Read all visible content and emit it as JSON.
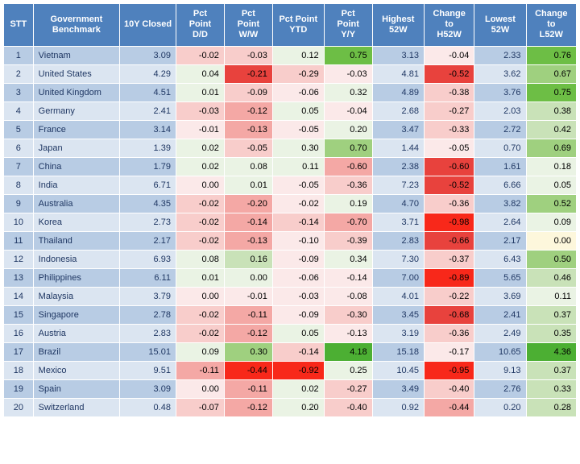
{
  "table": {
    "header_bg": "#4f81bd",
    "header_color": "#ffffff",
    "columns": [
      {
        "key": "stt",
        "label": "STT",
        "class": "col-stt"
      },
      {
        "key": "name",
        "label": "Government Benchmark",
        "class": "col-name"
      },
      {
        "key": "close",
        "label": "10Y Closed",
        "class": "col-close"
      },
      {
        "key": "dd",
        "label": "Pct Point D/D",
        "class": "col-dd"
      },
      {
        "key": "ww",
        "label": "Pct Point W/W",
        "class": "col-ww"
      },
      {
        "key": "ytd",
        "label": "Pct Point YTD",
        "class": "col-ytd"
      },
      {
        "key": "yy",
        "label": "Pct Point Y/Y",
        "class": "col-yy"
      },
      {
        "key": "h52",
        "label": "Highest 52W",
        "class": "col-h52"
      },
      {
        "key": "ch52",
        "label": "Change to H52W",
        "class": "col-ch52"
      },
      {
        "key": "l52",
        "label": "Lowest 52W",
        "class": "col-l52"
      },
      {
        "key": "cl52",
        "label": "Change to L52W",
        "class": "col-cl52"
      }
    ],
    "palette": {
      "blue_odd": "#b8cce4",
      "blue_even": "#dbe5f1",
      "pink_faint": "#fbe9e9",
      "pink_light": "#f8cdcb",
      "pink_med": "#f4a8a5",
      "red_strong": "#e8423d",
      "red_full": "#f8281a",
      "green_faint": "#eaf3e4",
      "green_light": "#c9e2b8",
      "green_med": "#9fd07f",
      "green_strong": "#6dbe45",
      "green_full": "#4caf33",
      "yellow_faint": "#fdf7dc",
      "text_dark": "#1f3763",
      "text_black": "#000000"
    },
    "rows": [
      {
        "stt": 1,
        "name": "Vietnam",
        "close": "3.09",
        "dd": {
          "v": "-0.02",
          "c": "#f8cdcb"
        },
        "ww": {
          "v": "-0.03",
          "c": "#f8cdcb"
        },
        "ytd": {
          "v": "0.12",
          "c": "#eaf3e4"
        },
        "yy": {
          "v": "0.75",
          "c": "#6dbe45"
        },
        "h52": "3.13",
        "ch52": {
          "v": "-0.04",
          "c": "#fbe9e9"
        },
        "l52": "2.33",
        "cl52": {
          "v": "0.76",
          "c": "#6dbe45"
        }
      },
      {
        "stt": 2,
        "name": "United States",
        "close": "4.29",
        "dd": {
          "v": "0.04",
          "c": "#eaf3e4"
        },
        "ww": {
          "v": "-0.21",
          "c": "#e8423d"
        },
        "ytd": {
          "v": "-0.29",
          "c": "#f8cdcb"
        },
        "yy": {
          "v": "-0.03",
          "c": "#fbe9e9"
        },
        "h52": "4.81",
        "ch52": {
          "v": "-0.52",
          "c": "#e8423d"
        },
        "l52": "3.62",
        "cl52": {
          "v": "0.67",
          "c": "#9fd07f"
        }
      },
      {
        "stt": 3,
        "name": "United Kingdom",
        "close": "4.51",
        "dd": {
          "v": "0.01",
          "c": "#eaf3e4"
        },
        "ww": {
          "v": "-0.09",
          "c": "#f8cdcb"
        },
        "ytd": {
          "v": "-0.06",
          "c": "#fbe9e9"
        },
        "yy": {
          "v": "0.32",
          "c": "#eaf3e4"
        },
        "h52": "4.89",
        "ch52": {
          "v": "-0.38",
          "c": "#f8cdcb"
        },
        "l52": "3.76",
        "cl52": {
          "v": "0.75",
          "c": "#6dbe45"
        }
      },
      {
        "stt": 4,
        "name": "Germany",
        "close": "2.41",
        "dd": {
          "v": "-0.03",
          "c": "#f8cdcb"
        },
        "ww": {
          "v": "-0.12",
          "c": "#f4a8a5"
        },
        "ytd": {
          "v": "0.05",
          "c": "#eaf3e4"
        },
        "yy": {
          "v": "-0.04",
          "c": "#fbe9e9"
        },
        "h52": "2.68",
        "ch52": {
          "v": "-0.27",
          "c": "#f8cdcb"
        },
        "l52": "2.03",
        "cl52": {
          "v": "0.38",
          "c": "#c9e2b8"
        }
      },
      {
        "stt": 5,
        "name": "France",
        "close": "3.14",
        "dd": {
          "v": "-0.01",
          "c": "#fbe9e9"
        },
        "ww": {
          "v": "-0.13",
          "c": "#f4a8a5"
        },
        "ytd": {
          "v": "-0.05",
          "c": "#fbe9e9"
        },
        "yy": {
          "v": "0.20",
          "c": "#eaf3e4"
        },
        "h52": "3.47",
        "ch52": {
          "v": "-0.33",
          "c": "#f8cdcb"
        },
        "l52": "2.72",
        "cl52": {
          "v": "0.42",
          "c": "#c9e2b8"
        }
      },
      {
        "stt": 6,
        "name": "Japan",
        "close": "1.39",
        "dd": {
          "v": "0.02",
          "c": "#eaf3e4"
        },
        "ww": {
          "v": "-0.05",
          "c": "#f8cdcb"
        },
        "ytd": {
          "v": "0.30",
          "c": "#eaf3e4"
        },
        "yy": {
          "v": "0.70",
          "c": "#9fd07f"
        },
        "h52": "1.44",
        "ch52": {
          "v": "-0.05",
          "c": "#fbe9e9"
        },
        "l52": "0.70",
        "cl52": {
          "v": "0.69",
          "c": "#9fd07f"
        }
      },
      {
        "stt": 7,
        "name": "China",
        "close": "1.79",
        "dd": {
          "v": "0.02",
          "c": "#eaf3e4"
        },
        "ww": {
          "v": "0.08",
          "c": "#eaf3e4"
        },
        "ytd": {
          "v": "0.11",
          "c": "#eaf3e4"
        },
        "yy": {
          "v": "-0.60",
          "c": "#f4a8a5"
        },
        "h52": "2.38",
        "ch52": {
          "v": "-0.60",
          "c": "#e8423d"
        },
        "l52": "1.61",
        "cl52": {
          "v": "0.18",
          "c": "#eaf3e4"
        }
      },
      {
        "stt": 8,
        "name": "India",
        "close": "6.71",
        "dd": {
          "v": "0.00",
          "c": "#fbe9e9"
        },
        "ww": {
          "v": "0.01",
          "c": "#eaf3e4"
        },
        "ytd": {
          "v": "-0.05",
          "c": "#fbe9e9"
        },
        "yy": {
          "v": "-0.36",
          "c": "#f8cdcb"
        },
        "h52": "7.23",
        "ch52": {
          "v": "-0.52",
          "c": "#e8423d"
        },
        "l52": "6.66",
        "cl52": {
          "v": "0.05",
          "c": "#eaf3e4"
        }
      },
      {
        "stt": 9,
        "name": "Australia",
        "close": "4.35",
        "dd": {
          "v": "-0.02",
          "c": "#f8cdcb"
        },
        "ww": {
          "v": "-0.20",
          "c": "#f4a8a5"
        },
        "ytd": {
          "v": "-0.02",
          "c": "#fbe9e9"
        },
        "yy": {
          "v": "0.19",
          "c": "#eaf3e4"
        },
        "h52": "4.70",
        "ch52": {
          "v": "-0.36",
          "c": "#f8cdcb"
        },
        "l52": "3.82",
        "cl52": {
          "v": "0.52",
          "c": "#9fd07f"
        }
      },
      {
        "stt": 10,
        "name": "Korea",
        "close": "2.73",
        "dd": {
          "v": "-0.02",
          "c": "#f8cdcb"
        },
        "ww": {
          "v": "-0.14",
          "c": "#f4a8a5"
        },
        "ytd": {
          "v": "-0.14",
          "c": "#f8cdcb"
        },
        "yy": {
          "v": "-0.70",
          "c": "#f4a8a5"
        },
        "h52": "3.71",
        "ch52": {
          "v": "-0.98",
          "c": "#f8281a"
        },
        "l52": "2.64",
        "cl52": {
          "v": "0.09",
          "c": "#eaf3e4"
        }
      },
      {
        "stt": 11,
        "name": "Thailand",
        "close": "2.17",
        "dd": {
          "v": "-0.02",
          "c": "#f8cdcb"
        },
        "ww": {
          "v": "-0.13",
          "c": "#f4a8a5"
        },
        "ytd": {
          "v": "-0.10",
          "c": "#fbe9e9"
        },
        "yy": {
          "v": "-0.39",
          "c": "#f8cdcb"
        },
        "h52": "2.83",
        "ch52": {
          "v": "-0.66",
          "c": "#e8423d"
        },
        "l52": "2.17",
        "cl52": {
          "v": "0.00",
          "c": "#fdf7dc"
        }
      },
      {
        "stt": 12,
        "name": "Indonesia",
        "close": "6.93",
        "dd": {
          "v": "0.08",
          "c": "#eaf3e4"
        },
        "ww": {
          "v": "0.16",
          "c": "#c9e2b8"
        },
        "ytd": {
          "v": "-0.09",
          "c": "#fbe9e9"
        },
        "yy": {
          "v": "0.34",
          "c": "#eaf3e4"
        },
        "h52": "7.30",
        "ch52": {
          "v": "-0.37",
          "c": "#f8cdcb"
        },
        "l52": "6.43",
        "cl52": {
          "v": "0.50",
          "c": "#9fd07f"
        }
      },
      {
        "stt": 13,
        "name": "Philippines",
        "close": "6.11",
        "dd": {
          "v": "0.01",
          "c": "#eaf3e4"
        },
        "ww": {
          "v": "0.00",
          "c": "#eaf3e4"
        },
        "ytd": {
          "v": "-0.06",
          "c": "#fbe9e9"
        },
        "yy": {
          "v": "-0.14",
          "c": "#fbe9e9"
        },
        "h52": "7.00",
        "ch52": {
          "v": "-0.89",
          "c": "#f8281a"
        },
        "l52": "5.65",
        "cl52": {
          "v": "0.46",
          "c": "#c9e2b8"
        }
      },
      {
        "stt": 14,
        "name": "Malaysia",
        "close": "3.79",
        "dd": {
          "v": "0.00",
          "c": "#fbe9e9"
        },
        "ww": {
          "v": "-0.01",
          "c": "#fbe9e9"
        },
        "ytd": {
          "v": "-0.03",
          "c": "#fbe9e9"
        },
        "yy": {
          "v": "-0.08",
          "c": "#fbe9e9"
        },
        "h52": "4.01",
        "ch52": {
          "v": "-0.22",
          "c": "#f8cdcb"
        },
        "l52": "3.69",
        "cl52": {
          "v": "0.11",
          "c": "#eaf3e4"
        }
      },
      {
        "stt": 15,
        "name": "Singapore",
        "close": "2.78",
        "dd": {
          "v": "-0.02",
          "c": "#f8cdcb"
        },
        "ww": {
          "v": "-0.11",
          "c": "#f4a8a5"
        },
        "ytd": {
          "v": "-0.09",
          "c": "#fbe9e9"
        },
        "yy": {
          "v": "-0.30",
          "c": "#f8cdcb"
        },
        "h52": "3.45",
        "ch52": {
          "v": "-0.68",
          "c": "#e8423d"
        },
        "l52": "2.41",
        "cl52": {
          "v": "0.37",
          "c": "#c9e2b8"
        }
      },
      {
        "stt": 16,
        "name": "Austria",
        "close": "2.83",
        "dd": {
          "v": "-0.02",
          "c": "#f8cdcb"
        },
        "ww": {
          "v": "-0.12",
          "c": "#f4a8a5"
        },
        "ytd": {
          "v": "0.05",
          "c": "#eaf3e4"
        },
        "yy": {
          "v": "-0.13",
          "c": "#fbe9e9"
        },
        "h52": "3.19",
        "ch52": {
          "v": "-0.36",
          "c": "#f8cdcb"
        },
        "l52": "2.49",
        "cl52": {
          "v": "0.35",
          "c": "#c9e2b8"
        }
      },
      {
        "stt": 17,
        "name": "Brazil",
        "close": "15.01",
        "dd": {
          "v": "0.09",
          "c": "#eaf3e4"
        },
        "ww": {
          "v": "0.30",
          "c": "#9fd07f"
        },
        "ytd": {
          "v": "-0.14",
          "c": "#f8cdcb"
        },
        "yy": {
          "v": "4.18",
          "c": "#4caf33"
        },
        "h52": "15.18",
        "ch52": {
          "v": "-0.17",
          "c": "#fbe9e9"
        },
        "l52": "10.65",
        "cl52": {
          "v": "4.36",
          "c": "#4caf33"
        }
      },
      {
        "stt": 18,
        "name": "Mexico",
        "close": "9.51",
        "dd": {
          "v": "-0.11",
          "c": "#f4a8a5"
        },
        "ww": {
          "v": "-0.44",
          "c": "#f8281a"
        },
        "ytd": {
          "v": "-0.92",
          "c": "#f8281a"
        },
        "yy": {
          "v": "0.25",
          "c": "#eaf3e4"
        },
        "h52": "10.45",
        "ch52": {
          "v": "-0.95",
          "c": "#f8281a"
        },
        "l52": "9.13",
        "cl52": {
          "v": "0.37",
          "c": "#c9e2b8"
        }
      },
      {
        "stt": 19,
        "name": "Spain",
        "close": "3.09",
        "dd": {
          "v": "0.00",
          "c": "#fbe9e9"
        },
        "ww": {
          "v": "-0.11",
          "c": "#f4a8a5"
        },
        "ytd": {
          "v": "0.02",
          "c": "#eaf3e4"
        },
        "yy": {
          "v": "-0.27",
          "c": "#f8cdcb"
        },
        "h52": "3.49",
        "ch52": {
          "v": "-0.40",
          "c": "#f8cdcb"
        },
        "l52": "2.76",
        "cl52": {
          "v": "0.33",
          "c": "#c9e2b8"
        }
      },
      {
        "stt": 20,
        "name": "Switzerland",
        "close": "0.48",
        "dd": {
          "v": "-0.07",
          "c": "#f8cdcb"
        },
        "ww": {
          "v": "-0.12",
          "c": "#f4a8a5"
        },
        "ytd": {
          "v": "0.20",
          "c": "#eaf3e4"
        },
        "yy": {
          "v": "-0.40",
          "c": "#f8cdcb"
        },
        "h52": "0.92",
        "ch52": {
          "v": "-0.44",
          "c": "#f4a8a5"
        },
        "l52": "0.20",
        "cl52": {
          "v": "0.28",
          "c": "#c9e2b8"
        }
      }
    ]
  }
}
